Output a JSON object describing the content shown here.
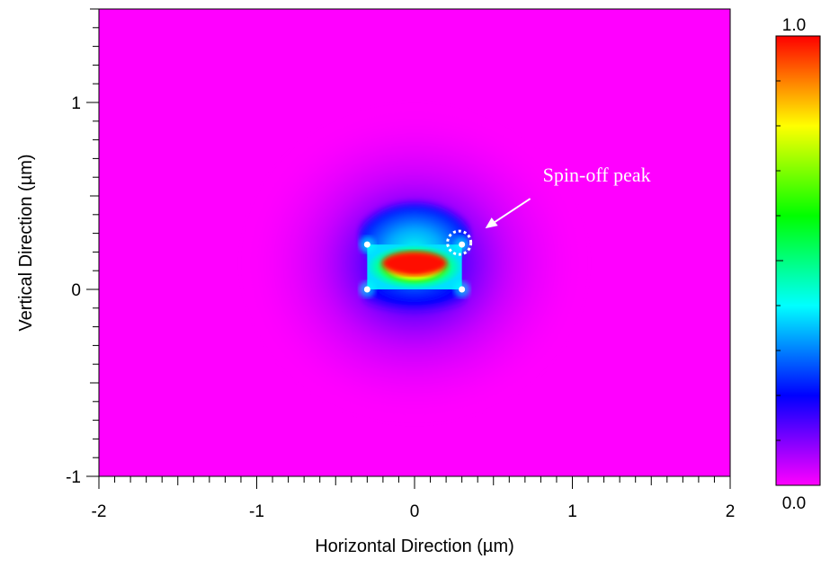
{
  "chart_data": {
    "type": "heatmap",
    "title": "",
    "xlabel": "Horizontal Direction (µm)",
    "ylabel": "Vertical Direction (µm)",
    "xlim": [
      -2,
      2
    ],
    "ylim": [
      -1,
      1.5
    ],
    "x_ticks": [
      {
        "value": -2,
        "label": "-2"
      },
      {
        "value": -1,
        "label": "-1"
      },
      {
        "value": 0,
        "label": "0"
      },
      {
        "value": 1,
        "label": "1"
      },
      {
        "value": 2,
        "label": "2"
      }
    ],
    "y_ticks": [
      {
        "value": -1,
        "label": "-1"
      },
      {
        "value": 0,
        "label": "0"
      },
      {
        "value": 1,
        "label": "1"
      }
    ],
    "colorbar": {
      "min": 0.0,
      "max": 1.0,
      "min_label": "0.0",
      "max_label": "1.0",
      "colormap": [
        "#ff00ff",
        "#0000ff",
        "#00ffff",
        "#00ff00",
        "#ffff00",
        "#ff0000"
      ]
    },
    "background_color": "#ff00ff",
    "waveguide": {
      "x_range": [
        -0.3,
        0.3
      ],
      "y_range": [
        0.0,
        0.24
      ],
      "peak_center": [
        0.0,
        0.14
      ],
      "peak_value": 1.0
    },
    "corner_points": [
      {
        "x": -0.3,
        "y": 0.24
      },
      {
        "x": 0.3,
        "y": 0.24
      },
      {
        "x": -0.3,
        "y": 0.0
      },
      {
        "x": 0.3,
        "y": 0.0
      }
    ],
    "annotation": {
      "text": "Spin-off peak",
      "target": {
        "x": 0.3,
        "y": 0.24
      }
    }
  }
}
